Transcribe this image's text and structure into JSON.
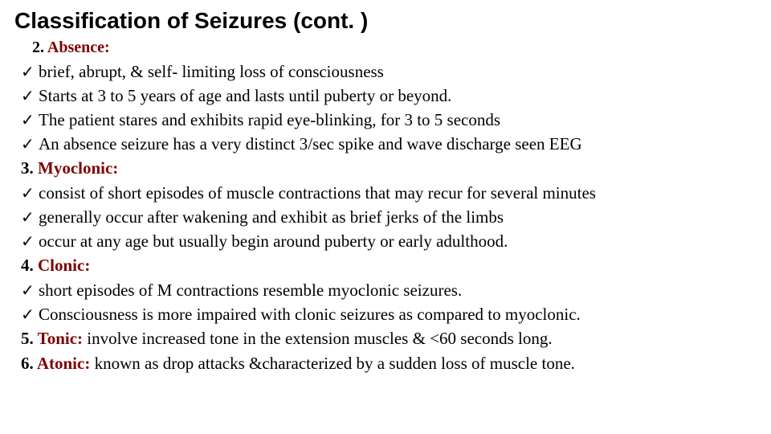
{
  "title": "Classification of Seizures (cont. )",
  "check_glyph": "✓",
  "colors": {
    "heading": "#7f0000",
    "text": "#000000",
    "background": "#ffffff"
  },
  "fontsizes": {
    "title": 28,
    "section": 20,
    "body": 21
  },
  "sec2": {
    "num": "2.",
    "label": " Absence:"
  },
  "sec2_items": {
    "a": "brief, abrupt, & self- limiting loss of consciousness",
    "b": " Starts at 3 to 5 years of age and lasts until puberty or beyond.",
    "c": "The patient stares and exhibits rapid eye-blinking, for 3 to 5 seconds",
    "d": " An absence seizure has a very distinct 3/sec spike and wave discharge seen EEG"
  },
  "sec3": {
    "num": "3.",
    "label": " Myoclonic:"
  },
  "sec3_items": {
    "a": "consist of short episodes of muscle contractions that may recur for several minutes",
    "b": "generally occur after wakening and exhibit as brief jerks of the limbs",
    "c": "occur at any age but usually begin around puberty or early adulthood."
  },
  "sec4": {
    "num": "4.",
    "label": " Clonic:"
  },
  "sec4_items": {
    "a": "short episodes of M contractions resemble myoclonic seizures.",
    "b": "Consciousness is more impaired with clonic seizures as compared to  myoclonic."
  },
  "sec5": {
    "num": "5. ",
    "label": "Tonic:",
    "rest": " involve increased tone in the extension muscles & <60 seconds long."
  },
  "sec6": {
    "num": "6. ",
    "label": "Atonic:",
    "rest": " known as drop attacks &characterized by a sudden loss of muscle tone."
  }
}
